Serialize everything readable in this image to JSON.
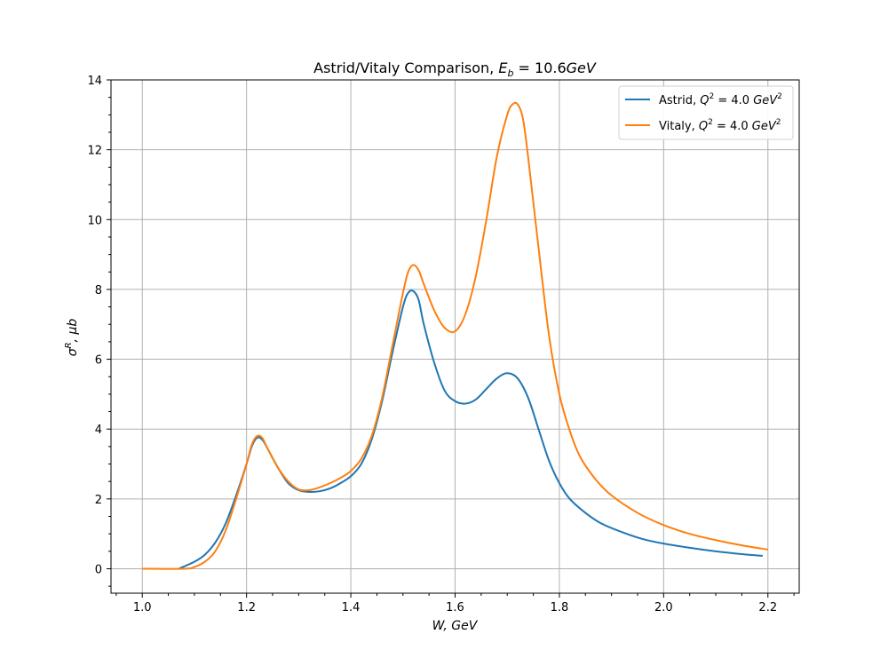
{
  "chart_data": {
    "type": "line",
    "title": "Astrid/Vitaly Comparison, E_b = 10.6GeV",
    "title_parts": {
      "prefix": "Astrid/Vitaly Comparison, ",
      "math": "E",
      "sub": "b",
      "rest": " = 10.6",
      "unit": "GeV"
    },
    "xlabel": "W, GeV",
    "ylabel": "σ^R, μb",
    "xlim": [
      0.94,
      2.26
    ],
    "ylim": [
      -0.7,
      14
    ],
    "x_ticks": [
      "1.0",
      "1.2",
      "1.4",
      "1.6",
      "1.8",
      "2.0",
      "2.2"
    ],
    "y_ticks": [
      "0",
      "2",
      "4",
      "6",
      "8",
      "10",
      "12",
      "14"
    ],
    "grid": true,
    "legend_position": "top-right",
    "colors": {
      "astrid": "#1f77b4",
      "vitaly": "#ff7f0e",
      "grid": "#b0b0b0"
    },
    "series": [
      {
        "name": "Astrid, Q^2 = 4.0 GeV^2",
        "label_parts": {
          "prefix": "Astrid, ",
          "eq": "Q",
          "sup": "2",
          "mid": " = 4.0 ",
          "unit": "GeV",
          "unit_sup": "2"
        },
        "color": "#1f77b4",
        "points": [
          [
            1.07,
            0.0
          ],
          [
            1.1,
            0.2
          ],
          [
            1.12,
            0.4
          ],
          [
            1.14,
            0.75
          ],
          [
            1.16,
            1.3
          ],
          [
            1.18,
            2.1
          ],
          [
            1.2,
            3.0
          ],
          [
            1.21,
            3.5
          ],
          [
            1.22,
            3.75
          ],
          [
            1.23,
            3.7
          ],
          [
            1.24,
            3.45
          ],
          [
            1.26,
            2.9
          ],
          [
            1.28,
            2.45
          ],
          [
            1.3,
            2.25
          ],
          [
            1.32,
            2.2
          ],
          [
            1.34,
            2.22
          ],
          [
            1.36,
            2.3
          ],
          [
            1.38,
            2.45
          ],
          [
            1.4,
            2.65
          ],
          [
            1.42,
            3.0
          ],
          [
            1.44,
            3.7
          ],
          [
            1.46,
            4.8
          ],
          [
            1.48,
            6.2
          ],
          [
            1.5,
            7.5
          ],
          [
            1.51,
            7.9
          ],
          [
            1.52,
            7.95
          ],
          [
            1.53,
            7.7
          ],
          [
            1.54,
            7.0
          ],
          [
            1.56,
            5.9
          ],
          [
            1.58,
            5.1
          ],
          [
            1.6,
            4.8
          ],
          [
            1.62,
            4.73
          ],
          [
            1.64,
            4.85
          ],
          [
            1.66,
            5.15
          ],
          [
            1.68,
            5.45
          ],
          [
            1.7,
            5.6
          ],
          [
            1.72,
            5.45
          ],
          [
            1.74,
            4.9
          ],
          [
            1.76,
            4.0
          ],
          [
            1.78,
            3.1
          ],
          [
            1.8,
            2.45
          ],
          [
            1.82,
            2.0
          ],
          [
            1.85,
            1.6
          ],
          [
            1.88,
            1.3
          ],
          [
            1.92,
            1.05
          ],
          [
            1.96,
            0.85
          ],
          [
            2.0,
            0.72
          ],
          [
            2.05,
            0.6
          ],
          [
            2.1,
            0.5
          ],
          [
            2.15,
            0.42
          ],
          [
            2.19,
            0.37
          ]
        ]
      },
      {
        "name": "Vitaly, Q^2 = 4.0 GeV^2",
        "label_parts": {
          "prefix": "Vitaly, ",
          "eq": "Q",
          "sup": "2",
          "mid": " = 4.0 ",
          "unit": "GeV",
          "unit_sup": "2"
        },
        "color": "#ff7f0e",
        "points": [
          [
            1.0,
            0.0
          ],
          [
            1.08,
            0.0
          ],
          [
            1.1,
            0.05
          ],
          [
            1.12,
            0.2
          ],
          [
            1.14,
            0.5
          ],
          [
            1.16,
            1.1
          ],
          [
            1.18,
            2.0
          ],
          [
            1.2,
            3.0
          ],
          [
            1.21,
            3.55
          ],
          [
            1.22,
            3.8
          ],
          [
            1.23,
            3.75
          ],
          [
            1.24,
            3.45
          ],
          [
            1.26,
            2.9
          ],
          [
            1.28,
            2.5
          ],
          [
            1.3,
            2.27
          ],
          [
            1.32,
            2.25
          ],
          [
            1.34,
            2.33
          ],
          [
            1.36,
            2.45
          ],
          [
            1.38,
            2.6
          ],
          [
            1.4,
            2.8
          ],
          [
            1.42,
            3.15
          ],
          [
            1.44,
            3.8
          ],
          [
            1.46,
            4.9
          ],
          [
            1.48,
            6.4
          ],
          [
            1.5,
            7.9
          ],
          [
            1.51,
            8.5
          ],
          [
            1.52,
            8.7
          ],
          [
            1.53,
            8.55
          ],
          [
            1.54,
            8.15
          ],
          [
            1.56,
            7.4
          ],
          [
            1.58,
            6.9
          ],
          [
            1.6,
            6.8
          ],
          [
            1.62,
            7.3
          ],
          [
            1.64,
            8.4
          ],
          [
            1.66,
            10.0
          ],
          [
            1.68,
            11.8
          ],
          [
            1.7,
            13.0
          ],
          [
            1.71,
            13.3
          ],
          [
            1.72,
            13.3
          ],
          [
            1.73,
            12.9
          ],
          [
            1.74,
            11.8
          ],
          [
            1.76,
            9.2
          ],
          [
            1.78,
            6.7
          ],
          [
            1.8,
            5.0
          ],
          [
            1.82,
            3.95
          ],
          [
            1.84,
            3.2
          ],
          [
            1.87,
            2.55
          ],
          [
            1.9,
            2.1
          ],
          [
            1.95,
            1.6
          ],
          [
            2.0,
            1.25
          ],
          [
            2.05,
            1.0
          ],
          [
            2.1,
            0.82
          ],
          [
            2.15,
            0.67
          ],
          [
            2.2,
            0.55
          ]
        ]
      }
    ]
  }
}
